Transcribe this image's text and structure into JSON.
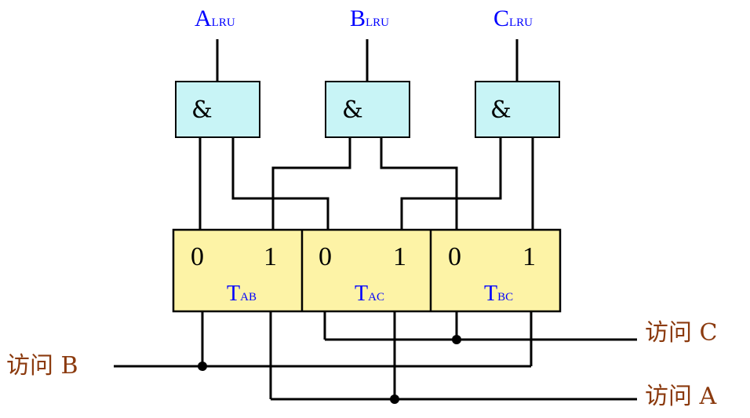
{
  "outputs": [
    {
      "main": "A",
      "sub": "LRU"
    },
    {
      "main": "B",
      "sub": "LRU"
    },
    {
      "main": "C",
      "sub": "LRU"
    }
  ],
  "gate_symbol": "&",
  "triggers": [
    {
      "main": "T",
      "sub": "AB",
      "bit0": "0",
      "bit1": "1"
    },
    {
      "main": "T",
      "sub": "AC",
      "bit0": "0",
      "bit1": "1"
    },
    {
      "main": "T",
      "sub": "BC",
      "bit0": "0",
      "bit1": "1"
    }
  ],
  "access": {
    "b": "访问 B",
    "c": "访问 C",
    "a": "访问 A"
  }
}
